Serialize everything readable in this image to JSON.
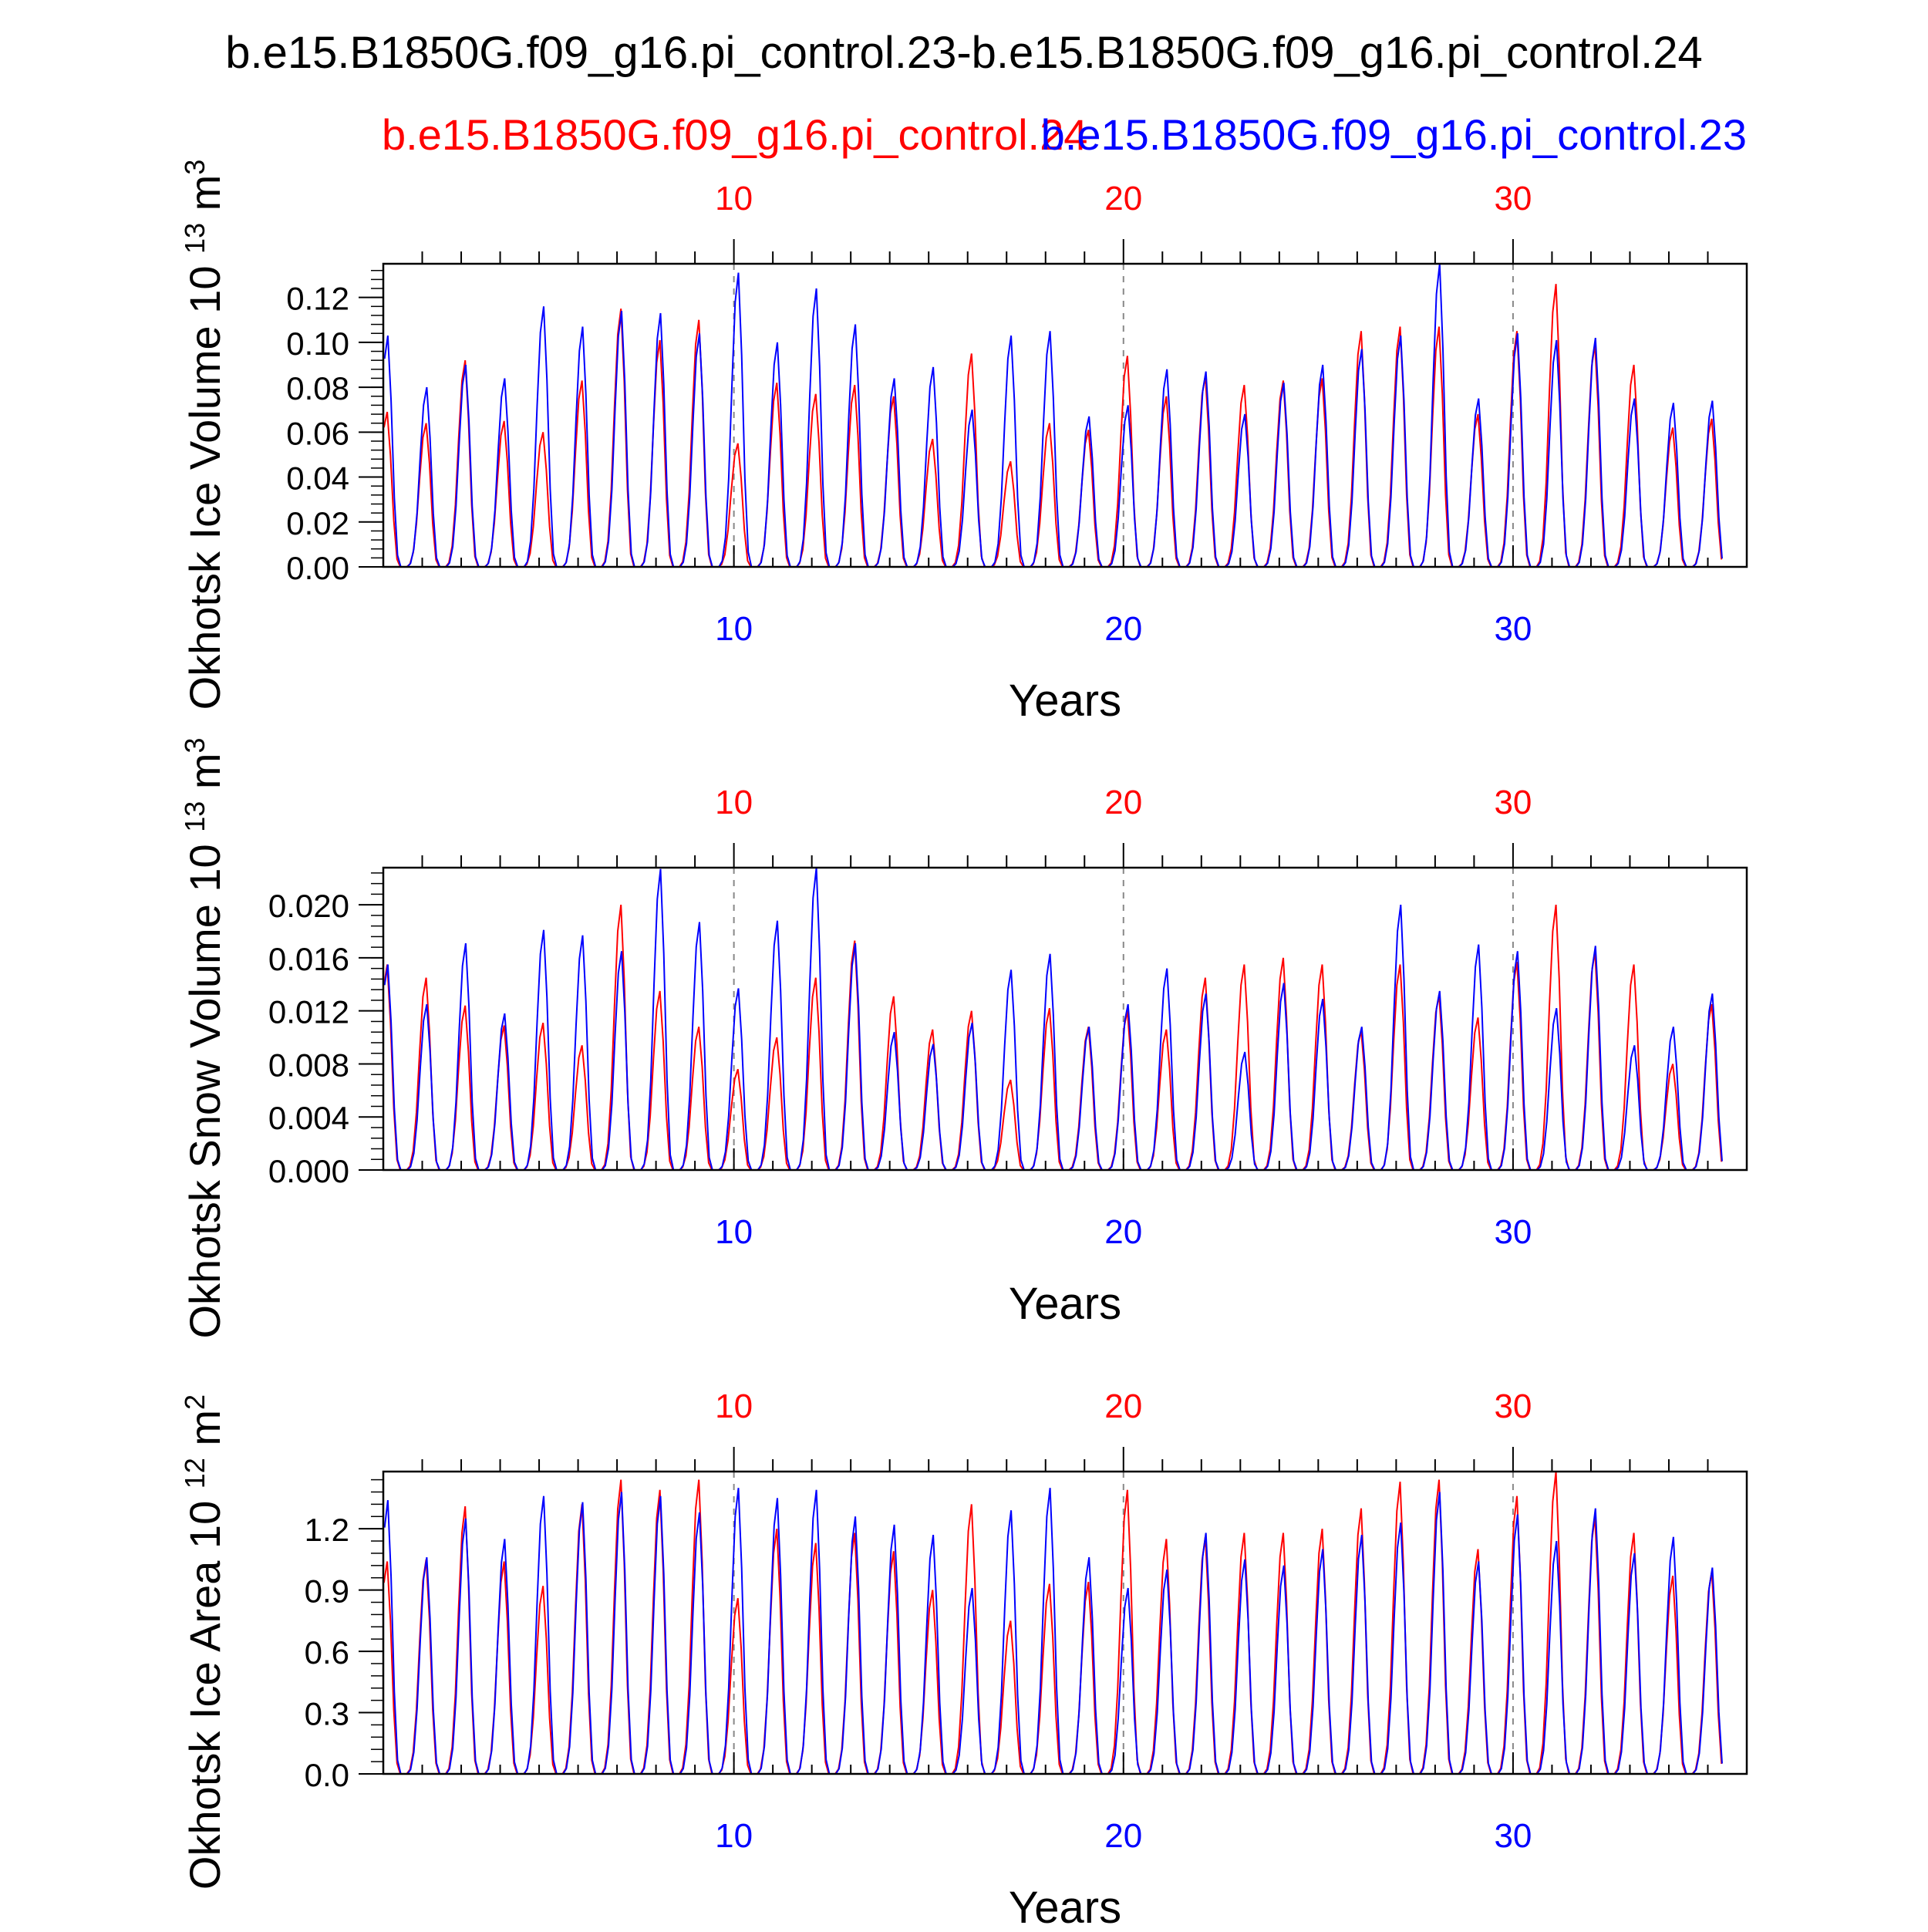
{
  "title": "b.e15.B1850G.f09_g16.pi_control.23-b.e15.B1850G.f09_g16.pi_control.24",
  "legend": {
    "red_label": "b.e15.B1850G.f09_g16.pi_control.24",
    "blue_label": "b.e15.B1850G.f09_g16.pi_control.23"
  },
  "colors": {
    "red": "#ff0000",
    "blue": "#0000ff",
    "axis": "#000000",
    "refline": "#888888"
  },
  "chart_data": [
    {
      "type": "line",
      "ylabel": "Okhotsk Ice Volume 10",
      "ylabel_sup": "13",
      "ylabel_unit": "m",
      "ylabel_unit_sup": "3",
      "xlabel": "Years",
      "xlim": [
        1,
        36
      ],
      "ylim": [
        0,
        0.135
      ],
      "yticks": [
        0.0,
        0.02,
        0.04,
        0.06,
        0.08,
        0.1,
        0.12
      ],
      "ytick_labels": [
        "0.00",
        "0.02",
        "0.04",
        "0.06",
        "0.08",
        "0.10",
        "0.12"
      ],
      "xticks": [
        10,
        20,
        30
      ],
      "xtick_labels": [
        "10",
        "20",
        "30"
      ],
      "series": [
        {
          "name": "b.e15.B1850G.f09_g16.pi_control.23",
          "color": "blue",
          "peaks": [
            0.103,
            0.08,
            0.09,
            0.084,
            0.116,
            0.107,
            0.114,
            0.113,
            0.104,
            0.131,
            0.1,
            0.124,
            0.108,
            0.084,
            0.089,
            0.07,
            0.103,
            0.105,
            0.067,
            0.072,
            0.088,
            0.087,
            0.068,
            0.082,
            0.09,
            0.097,
            0.103,
            0.135,
            0.075,
            0.104,
            0.101,
            0.102,
            0.075,
            0.073,
            0.074
          ]
        },
        {
          "name": "b.e15.B1850G.f09_g16.pi_control.24",
          "color": "red",
          "peaks": [
            0.069,
            0.064,
            0.092,
            0.065,
            0.06,
            0.083,
            0.115,
            0.101,
            0.11,
            0.055,
            0.082,
            0.077,
            0.081,
            0.076,
            0.057,
            0.095,
            0.047,
            0.064,
            0.061,
            0.094,
            0.076,
            0.085,
            0.081,
            0.083,
            0.084,
            0.105,
            0.107,
            0.107,
            0.068,
            0.105,
            0.126,
            0.099,
            0.09,
            0.062,
            0.066
          ]
        }
      ]
    },
    {
      "type": "line",
      "ylabel": "Okhotsk Snow Volume 10",
      "ylabel_sup": "13",
      "ylabel_unit": "m",
      "ylabel_unit_sup": "3",
      "xlabel": "Years",
      "xlim": [
        1,
        36
      ],
      "ylim": [
        0,
        0.0228
      ],
      "yticks": [
        0.0,
        0.004,
        0.008,
        0.012,
        0.016,
        0.02
      ],
      "ytick_labels": [
        "0.000",
        "0.004",
        "0.008",
        "0.012",
        "0.016",
        "0.020"
      ],
      "xticks": [
        10,
        20,
        30
      ],
      "xtick_labels": [
        "10",
        "20",
        "30"
      ],
      "series": [
        {
          "name": "b.e15.B1850G.f09_g16.pi_control.23",
          "color": "blue",
          "peaks": [
            0.0155,
            0.0125,
            0.0171,
            0.0118,
            0.0181,
            0.0177,
            0.0165,
            0.0227,
            0.0187,
            0.0137,
            0.0188,
            0.0228,
            0.0171,
            0.0104,
            0.0095,
            0.0111,
            0.0151,
            0.0163,
            0.0108,
            0.0125,
            0.0152,
            0.0133,
            0.0089,
            0.0141,
            0.0129,
            0.0108,
            0.02,
            0.0135,
            0.017,
            0.0165,
            0.0122,
            0.0169,
            0.0094,
            0.0108,
            0.0133
          ]
        },
        {
          "name": "b.e15.B1850G.f09_g16.pi_control.24",
          "color": "red",
          "peaks": [
            0.0155,
            0.0145,
            0.0124,
            0.0109,
            0.0111,
            0.0094,
            0.02,
            0.0135,
            0.0108,
            0.0076,
            0.01,
            0.0145,
            0.0173,
            0.0131,
            0.0106,
            0.012,
            0.0068,
            0.0122,
            0.0108,
            0.012,
            0.0106,
            0.0145,
            0.0155,
            0.016,
            0.0155,
            0.0105,
            0.0155,
            0.0132,
            0.0115,
            0.0157,
            0.02,
            0.0165,
            0.0155,
            0.008,
            0.0125
          ]
        }
      ]
    },
    {
      "type": "line",
      "ylabel": "Okhotsk Ice Area 10",
      "ylabel_sup": "12",
      "ylabel_unit": "m",
      "ylabel_unit_sup": "2",
      "xlabel": "Years",
      "xlim": [
        1,
        36
      ],
      "ylim": [
        0,
        1.48
      ],
      "yticks": [
        0.0,
        0.3,
        0.6,
        0.9,
        1.2
      ],
      "ytick_labels": [
        "0.0",
        "0.3",
        "0.6",
        "0.9",
        "1.2"
      ],
      "xticks": [
        10,
        20,
        30
      ],
      "xtick_labels": [
        "10",
        "20",
        "30"
      ],
      "series": [
        {
          "name": "b.e15.B1850G.f09_g16.pi_control.23",
          "color": "blue",
          "peaks": [
            1.34,
            1.06,
            1.25,
            1.15,
            1.36,
            1.33,
            1.38,
            1.36,
            1.28,
            1.4,
            1.35,
            1.39,
            1.26,
            1.22,
            1.17,
            0.91,
            1.29,
            1.4,
            1.06,
            0.91,
            1.0,
            1.18,
            1.05,
            1.02,
            1.1,
            1.17,
            1.23,
            1.38,
            1.04,
            1.27,
            1.14,
            1.3,
            1.08,
            1.16,
            1.01
          ]
        },
        {
          "name": "b.e15.B1850G.f09_g16.pi_control.24",
          "color": "red",
          "peaks": [
            1.04,
            1.05,
            1.31,
            1.04,
            0.92,
            1.32,
            1.44,
            1.39,
            1.44,
            0.86,
            1.2,
            1.13,
            1.18,
            1.09,
            0.9,
            1.32,
            0.75,
            0.93,
            0.94,
            1.39,
            1.15,
            1.16,
            1.18,
            1.18,
            1.2,
            1.3,
            1.43,
            1.44,
            1.1,
            1.36,
            1.48,
            1.26,
            1.18,
            0.97,
            0.99
          ]
        }
      ]
    }
  ]
}
